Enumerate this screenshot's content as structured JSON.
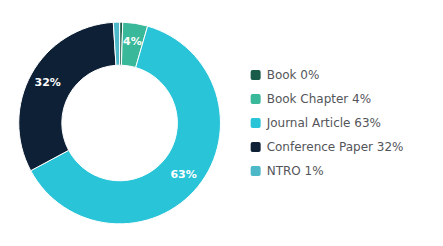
{
  "chart_data": {
    "type": "pie",
    "categories": [
      "Book 0%",
      "Book Chapter 4%",
      "Journal Article 63%",
      "Conference Paper 32%",
      "NTRO 1%"
    ],
    "values": [
      0.5,
      4,
      63,
      32,
      1
    ],
    "value_labels": [
      null,
      "4%",
      "63%",
      "32%",
      "1%"
    ],
    "colors": [
      "#1a5c4a",
      "#3ab89a",
      "#29c4d8",
      "#0d2035",
      "#4db8c8"
    ],
    "data_labels": true,
    "legend": "right"
  }
}
